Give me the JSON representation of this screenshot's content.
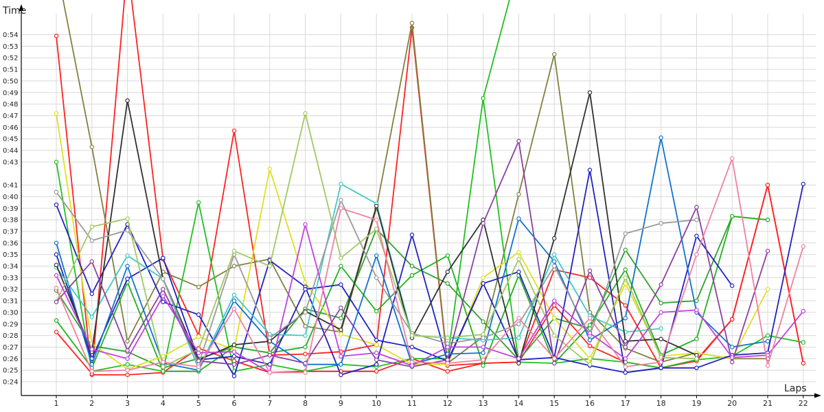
{
  "chart_data": {
    "type": "line",
    "xlabel": "Laps",
    "ylabel": "Time",
    "x": [
      1,
      2,
      3,
      4,
      5,
      6,
      7,
      8,
      9,
      10,
      11,
      12,
      13,
      14,
      15,
      16,
      17,
      18,
      19,
      20,
      21,
      22
    ],
    "y_ticks": [
      "0:24",
      "0:25",
      "0:26",
      "0:27",
      "0:28",
      "0:29",
      "0:30",
      "0:31",
      "0:32",
      "0:33",
      "0:34",
      "0:35",
      "0:36",
      "0:37",
      "0:38",
      "0:39",
      "0:40",
      "0:41",
      "0:43",
      "0:44",
      "0:45",
      "0:46",
      "0:47",
      "0:48",
      "0:49",
      "0:50",
      "0:51",
      "0:52",
      "0:53",
      "0:54"
    ],
    "ylim": [
      23.7,
      55
    ],
    "grid": true,
    "series": [
      {
        "color": "#ff2020",
        "values": [
          53.9,
          24.6,
          24.6,
          24.8,
          26.9,
          25.8,
          24.8,
          24.9,
          24.9,
          24.9,
          26.0,
          24.9,
          25.6,
          25.7,
          33.7,
          33.0,
          30.6,
          25.2,
          25.9,
          29.4,
          41.0,
          25.6
        ]
      },
      {
        "color": "#ff2020",
        "values": [
          28.3,
          24.7,
          60,
          34.6,
          28.0,
          45.7,
          26.3,
          26.4,
          26.6,
          27.2,
          54.6,
          25.4,
          25.6,
          25.7,
          30.6,
          27.1,
          25.7,
          25.2,
          25.8,
          29.4,
          41.0,
          25.6
        ]
      },
      {
        "color": "#808040",
        "values": [
          60,
          44.3,
          27.5,
          33.5,
          32.2,
          34.0,
          34.6,
          28.8,
          28.3,
          39.0,
          55.0,
          25.6,
          27.9,
          40.2,
          52.3,
          30.0,
          26.9,
          25.7,
          26.5,
          26.0,
          26.0,
          null
        ]
      },
      {
        "color": "#20c020",
        "values": [
          43.0,
          24.9,
          25.5,
          24.9,
          39.5,
          24.9,
          25.5,
          24.9,
          25.5,
          25.3,
          26.0,
          26.0,
          48.5,
          25.7,
          25.6,
          26.0,
          25.7,
          25.2,
          25.9,
          26.2,
          28.0,
          27.4
        ]
      },
      {
        "color": "#20c020",
        "values": [
          null,
          null,
          null,
          null,
          null,
          null,
          null,
          null,
          null,
          null,
          null,
          null,
          48.5,
          60,
          null,
          null,
          null,
          null,
          null,
          null,
          null,
          null
        ]
      },
      {
        "color": "#30a030",
        "values": [
          31.9,
          27.1,
          26.6,
          25.2,
          26.0,
          27.0,
          26.5,
          30.3,
          29.5,
          37.2,
          34.0,
          32.5,
          29.2,
          25.9,
          29.5,
          28.6,
          35.4,
          30.8,
          31.0,
          38.3,
          38.0,
          null
        ]
      },
      {
        "color": "#20b020",
        "values": [
          29.3,
          25.2,
          32.6,
          24.9,
          24.9,
          27.0,
          26.5,
          27.0,
          34.0,
          30.1,
          33.2,
          34.9,
          25.4,
          33.2,
          25.6,
          28.9,
          33.7,
          26.3,
          27.7,
          38.3,
          38.0,
          null
        ]
      },
      {
        "color": "#e0e020",
        "values": [
          47.2,
          27.3,
          25.1,
          26.2,
          27.9,
          26.8,
          42.4,
          32.6,
          28.1,
          27.2,
          25.5,
          25.5,
          33.0,
          35.2,
          29.5,
          26.0,
          32.5,
          26.2,
          26.5,
          26.0,
          32.0,
          null
        ]
      },
      {
        "color": "#2020c0",
        "values": [
          39.3,
          31.6,
          37.6,
          30.9,
          29.8,
          24.5,
          34.5,
          32.2,
          24.6,
          25.5,
          36.7,
          25.7,
          32.5,
          33.5,
          26.1,
          42.3,
          24.8,
          25.2,
          25.2,
          26.3,
          26.5,
          41.1
        ]
      },
      {
        "color": "#2020c0",
        "values": [
          35.0,
          26.0,
          32.9,
          34.7,
          25.9,
          26.2,
          25.5,
          32.0,
          32.4,
          27.6,
          27.0,
          25.8,
          32.5,
          25.9,
          26.1,
          25.4,
          24.8,
          25.2,
          36.6,
          32.3,
          null,
          null
        ]
      },
      {
        "color": "#1070d0",
        "values": [
          36.0,
          25.5,
          34.0,
          25.6,
          25.0,
          31.0,
          27.5,
          25.5,
          25.5,
          34.9,
          25.5,
          26.4,
          26.5,
          38.1,
          34.4,
          27.6,
          29.5,
          45.1,
          30.0,
          27.0,
          27.5,
          null
        ]
      },
      {
        "color": "#40c8c8",
        "values": [
          33.9,
          29.6,
          34.9,
          32.9,
          25.1,
          31.5,
          28.1,
          28.0,
          41.1,
          39.4,
          28.0,
          27.8,
          27.6,
          27.8,
          35.0,
          29.7,
          28.3,
          28.6,
          null,
          null,
          null,
          null
        ]
      },
      {
        "color": "#303030",
        "values": [
          34.1,
          26.6,
          48.3,
          32.9,
          25.9,
          27.2,
          27.5,
          30.1,
          28.5,
          39.2,
          27.8,
          33.5,
          38.0,
          25.6,
          36.4,
          49.0,
          27.5,
          27.7,
          26.3,
          null,
          null,
          null
        ]
      },
      {
        "color": "#9a9a9a",
        "values": [
          40.4,
          36.2,
          37.1,
          32.9,
          25.5,
          35.0,
          27.8,
          30.0,
          39.7,
          33.0,
          28.2,
          27.3,
          27.8,
          29.0,
          34.0,
          28.0,
          36.8,
          37.7,
          38.0,
          null,
          null,
          null
        ]
      },
      {
        "color": "#a0c860",
        "values": [
          30.9,
          37.4,
          38.1,
          25.3,
          26.8,
          35.3,
          34.0,
          47.2,
          34.7,
          37.2,
          28.0,
          27.8,
          28.1,
          34.6,
          28.0,
          25.5,
          33.0,
          26.1,
          26.0,
          null,
          null,
          null
        ]
      },
      {
        "color": "#8a40a0",
        "values": [
          30.9,
          34.4,
          26.7,
          32.0,
          25.8,
          25.5,
          26.3,
          25.6,
          30.4,
          25.9,
          25.3,
          25.9,
          37.7,
          44.8,
          25.6,
          33.6,
          27.0,
          32.4,
          39.1,
          25.7,
          35.3,
          null
        ]
      },
      {
        "color": "#c040e0",
        "values": [
          33.2,
          26.8,
          26.0,
          31.4,
          26.5,
          26.6,
          24.8,
          37.6,
          26.2,
          26.5,
          25.4,
          27.0,
          27.0,
          26.0,
          31.0,
          28.2,
          26.0,
          30.0,
          30.2,
          26.1,
          26.3,
          30.1
        ]
      },
      {
        "color": "#f080a0",
        "values": [
          32.1,
          24.9,
          25.0,
          25.7,
          25.3,
          30.3,
          24.8,
          24.8,
          39.0,
          38.0,
          25.7,
          25.6,
          25.9,
          29.5,
          26.0,
          29.5,
          25.3,
          25.7,
          35.0,
          43.3,
          25.4,
          35.7
        ]
      }
    ]
  }
}
